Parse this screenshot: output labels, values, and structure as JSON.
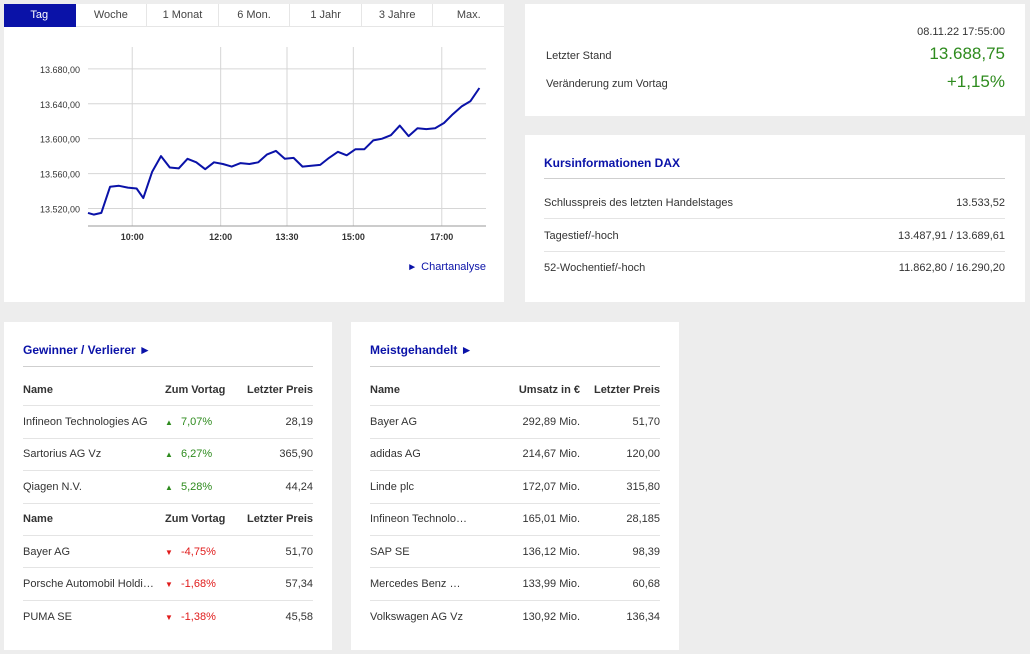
{
  "tabs": [
    "Tag",
    "Woche",
    "1 Monat",
    "6 Mon.",
    "1 Jahr",
    "3 Jahre",
    "Max."
  ],
  "active_tab": "Tag",
  "chart_link": "Chartanalyse",
  "chart_data": {
    "type": "line",
    "x_ticks": [
      "10:00",
      "12:00",
      "13:30",
      "15:00",
      "17:00"
    ],
    "y_ticks": [
      "13.520,00",
      "13.560,00",
      "13.600,00",
      "13.640,00",
      "13.680,00"
    ],
    "ylim": [
      13500,
      13705
    ],
    "xlim": [
      9.0,
      18.0
    ],
    "line_color": "#0a12a8",
    "grid": true,
    "x": [
      9.0,
      9.13,
      9.3,
      9.5,
      9.7,
      9.9,
      10.1,
      10.25,
      10.45,
      10.65,
      10.85,
      11.05,
      11.25,
      11.45,
      11.65,
      11.85,
      12.05,
      12.25,
      12.45,
      12.65,
      12.85,
      13.05,
      13.25,
      13.45,
      13.65,
      13.85,
      14.05,
      14.25,
      14.45,
      14.65,
      14.85,
      15.05,
      15.25,
      15.45,
      15.65,
      15.85,
      16.05,
      16.25,
      16.45,
      16.65,
      16.85,
      17.05,
      17.25,
      17.45,
      17.65,
      17.85
    ],
    "y": [
      13515,
      13513,
      13515,
      13545,
      13546,
      13544,
      13543,
      13532,
      13562,
      13580,
      13567,
      13566,
      13577,
      13573,
      13565,
      13573,
      13571,
      13568,
      13572,
      13571,
      13573,
      13582,
      13586,
      13577,
      13578,
      13568,
      13569,
      13570,
      13578,
      13585,
      13581,
      13588,
      13588,
      13598,
      13600,
      13604,
      13615,
      13603,
      13612,
      13611,
      13612,
      13618,
      13628,
      13637,
      13643,
      13658
    ]
  },
  "quote": {
    "datetime": "08.11.22 17:55:00",
    "last_label": "Letzter Stand",
    "last_value": "13.688,75",
    "change_label": "Veränderung zum Vortag",
    "change_value": "+1,15%",
    "color": "#2e8b1e"
  },
  "info": {
    "title": "Kursinformationen DAX",
    "rows": [
      {
        "label": "Schlusspreis des letzten Handelstages",
        "value": "13.533,52"
      },
      {
        "label": "Tagestief/-hoch",
        "value": "13.487,91 / 13.689,61"
      },
      {
        "label": "52-Wochentief/-hoch",
        "value": "11.862,80 / 16.290,20"
      }
    ]
  },
  "gainers_losers": {
    "title": "Gewinner / Verlierer ►",
    "header": {
      "name": "Name",
      "change": "Zum Vortag",
      "price": "Letzter Preis"
    },
    "gainers": [
      {
        "name": "Infineon Technologies AG",
        "change": "7,07%",
        "price": "28,19"
      },
      {
        "name": "Sartorius AG Vz",
        "change": "6,27%",
        "price": "365,90"
      },
      {
        "name": "Qiagen N.V.",
        "change": "5,28%",
        "price": "44,24"
      }
    ],
    "losers": [
      {
        "name": "Bayer AG",
        "change": "-4,75%",
        "price": "51,70"
      },
      {
        "name": "Porsche Automobil Holding…",
        "change": "-1,68%",
        "price": "57,34"
      },
      {
        "name": "PUMA SE",
        "change": "-1,38%",
        "price": "45,58"
      }
    ],
    "up_arrow": "▲",
    "down_arrow": "▼",
    "up_color": "#2e8b1e",
    "down_color": "#e01b1b"
  },
  "most_traded": {
    "title": "Meistgehandelt ►",
    "header": {
      "name": "Name",
      "volume": "Umsatz in €",
      "price": "Letzter Preis"
    },
    "rows": [
      {
        "name": "Bayer AG",
        "volume": "292,89 Mio.",
        "price": "51,70"
      },
      {
        "name": "adidas AG",
        "volume": "214,67 Mio.",
        "price": "120,00"
      },
      {
        "name": "Linde plc",
        "volume": "172,07 Mio.",
        "price": "315,80"
      },
      {
        "name": "Infineon Technologies AG",
        "volume": "165,01 Mio.",
        "price": "28,185"
      },
      {
        "name": "SAP SE",
        "volume": "136,12 Mio.",
        "price": "98,39"
      },
      {
        "name": "Mercedes Benz Group AG…",
        "volume": "133,99 Mio.",
        "price": "60,68"
      },
      {
        "name": "Volkswagen AG Vz",
        "volume": "130,92 Mio.",
        "price": "136,34"
      }
    ]
  }
}
